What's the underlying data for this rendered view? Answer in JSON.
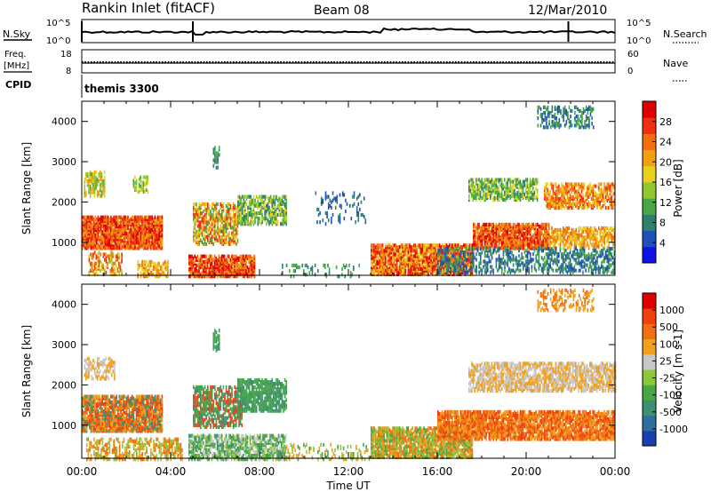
{
  "header": {
    "station": "Rankin Inlet (fitACF)",
    "beam": "Beam 08",
    "date": "12/Mar/2010"
  },
  "top_panels": {
    "nsky_label": "N.Sky",
    "nsky_ticks": [
      "10^5",
      "10^0"
    ],
    "nsearch_label": "N.Search",
    "nsearch_ticks": [
      "10^5",
      "10^0"
    ],
    "freq_label": "Freq.",
    "freq_unit": "[MHz]",
    "freq_ticks": [
      "18",
      "8"
    ],
    "nave_label": "Nave",
    "nave_ticks": [
      "60",
      "0"
    ],
    "cpid_label": "CPID",
    "cpid_value": "themis 3300"
  },
  "chart_data": [
    {
      "type": "heatmap",
      "name": "power",
      "xlabel": "",
      "ylabel": "Slant Range [km]",
      "y_ticks": [
        1000,
        2000,
        3000,
        4000
      ],
      "ylim": [
        180,
        4500
      ],
      "xlim_hours": [
        0,
        24
      ],
      "colorbar": {
        "label": "Power [dB]",
        "ticks": [
          "28",
          "24",
          "20",
          "16",
          "12",
          "8",
          "4"
        ],
        "colors": [
          "#1010e8",
          "#1f4fb8",
          "#2f7f70",
          "#48a848",
          "#90c830",
          "#e8d020",
          "#f0a010",
          "#f07010",
          "#f03010",
          "#e00000"
        ]
      }
    },
    {
      "type": "heatmap",
      "name": "velocity",
      "xlabel": "Time UT",
      "ylabel": "Slant Range [km]",
      "x_ticks": [
        "00:00",
        "04:00",
        "08:00",
        "12:00",
        "16:00",
        "20:00",
        "00:00"
      ],
      "y_ticks": [
        1000,
        2000,
        3000,
        4000
      ],
      "ylim": [
        180,
        4500
      ],
      "xlim_hours": [
        0,
        24
      ],
      "colorbar": {
        "label": "Velocity [m s-1]",
        "ticks": [
          "1000",
          "500",
          "100",
          "25",
          "-25",
          "-100",
          "-500",
          "-1000"
        ],
        "colors": [
          "#1c3fb0",
          "#2f6fa0",
          "#3f8f70",
          "#48a848",
          "#8cc83c",
          "#c8c8c8",
          "#f0a020",
          "#f07010",
          "#f04010",
          "#e00000"
        ]
      }
    }
  ],
  "axis": {
    "xlabel": "Time UT"
  }
}
